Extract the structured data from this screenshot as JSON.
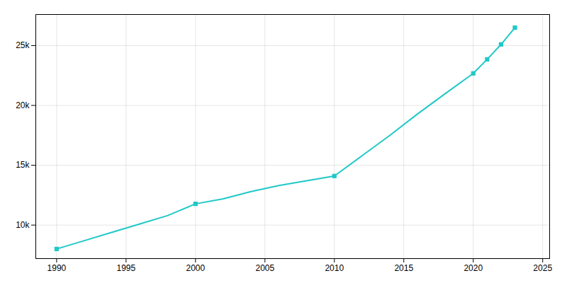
{
  "chart_data": {
    "type": "line",
    "series": [
      {
        "type": "line",
        "color": "#20C8C8",
        "x": [
          1990,
          1992,
          1994,
          1996,
          1998,
          2000,
          2002,
          2004,
          2006,
          2008,
          2010,
          2012,
          2014,
          2016,
          2018,
          2020,
          2021,
          2022,
          2023
        ],
        "values": [
          8005,
          8700,
          9400,
          10100,
          10800,
          11775,
          12200,
          12800,
          13300,
          13700,
          14102,
          15800,
          17500,
          19300,
          21000,
          22678,
          23852,
          25100,
          26500
        ]
      },
      {
        "type": "scatter",
        "color": "#20C8C8",
        "marker": "square",
        "x": [
          1990,
          2000,
          2010,
          2020,
          2021,
          2022,
          2023
        ],
        "values": [
          8005,
          11775,
          14102,
          22678,
          23852,
          25100,
          26500
        ]
      }
    ],
    "xlim": [
      1988.5,
      2025.5
    ],
    "ylim": [
      7200,
      27600
    ],
    "xticks": [
      1990,
      1995,
      2000,
      2005,
      2010,
      2015,
      2020,
      2025
    ],
    "yticks": [
      {
        "value": 10000,
        "label": "10k"
      },
      {
        "value": 15000,
        "label": "15k"
      },
      {
        "value": 20000,
        "label": "20k"
      },
      {
        "value": 25000,
        "label": "25k"
      }
    ],
    "grid": true
  }
}
